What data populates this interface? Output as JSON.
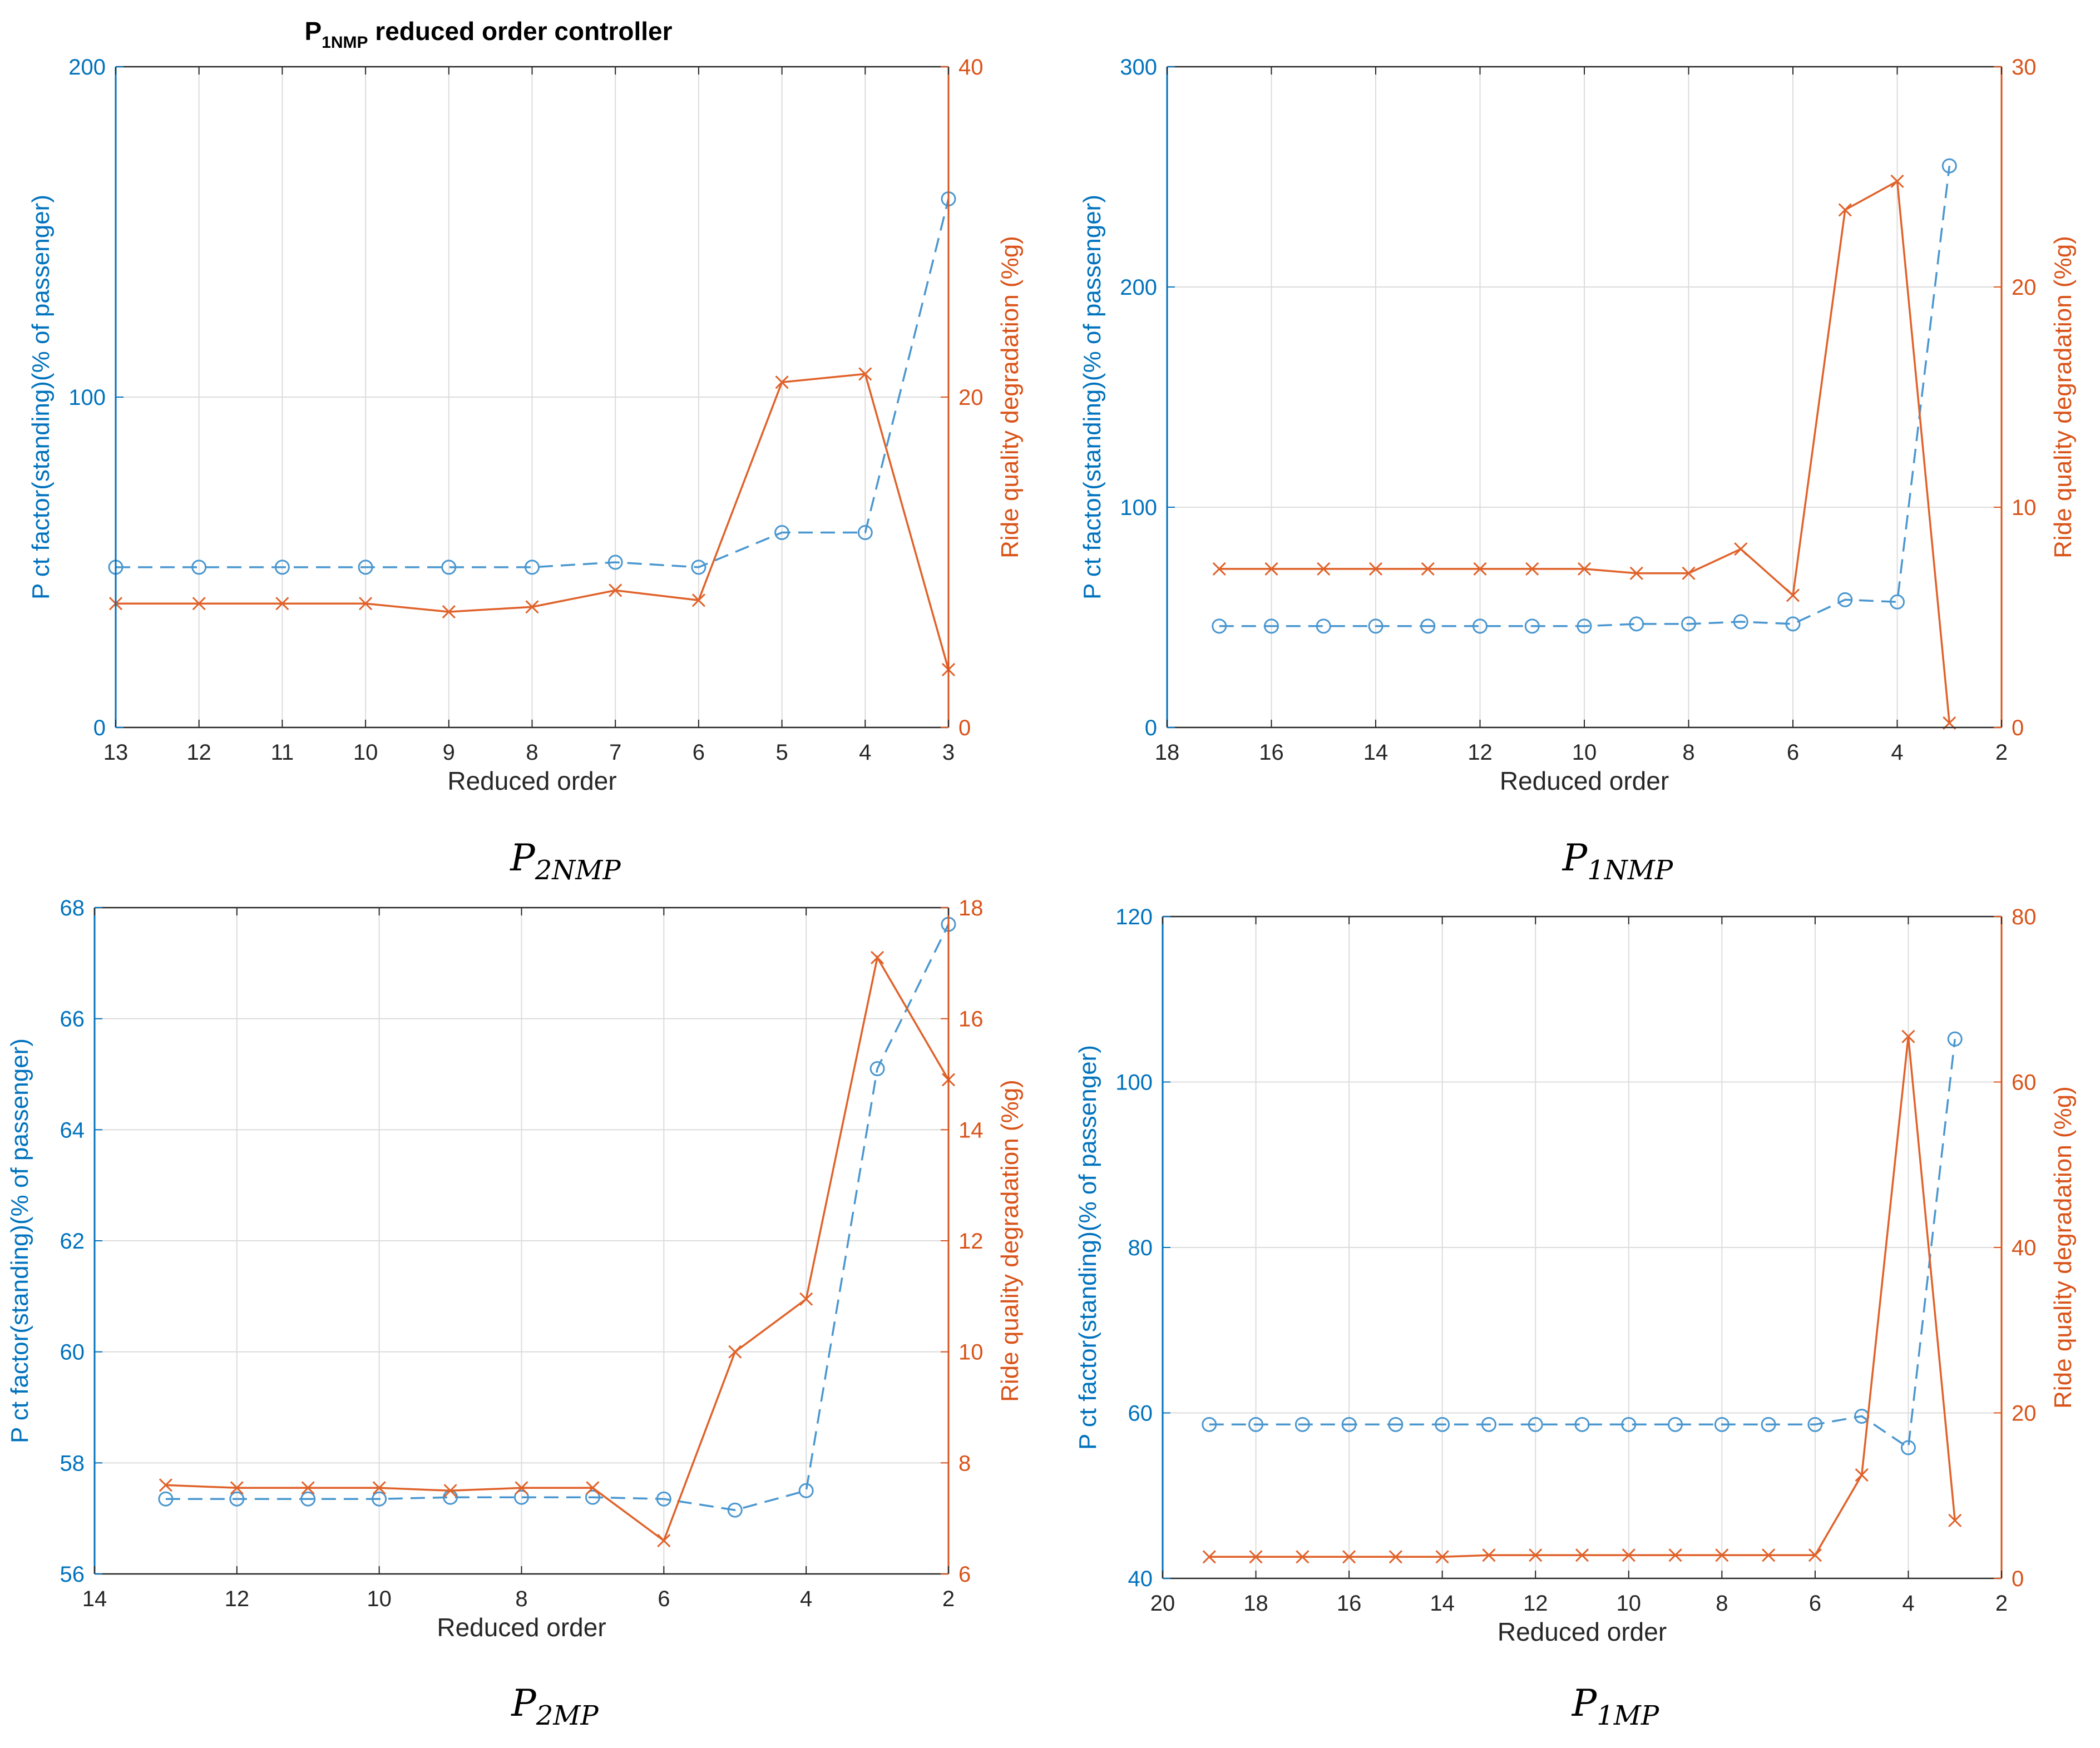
{
  "colors": {
    "left_axis": "#0072BD",
    "left_series": "#4A97D0",
    "right_axis": "#D95319",
    "right_series": "#E0622A",
    "grid": "#DCDCDC",
    "axis_box": "#262626"
  },
  "chart_data": [
    {
      "id": "p2nmp",
      "type": "line",
      "title_main": "P",
      "title_sub": "1NMP",
      "title_rest": " reduced order controller",
      "caption_main": "P",
      "caption_sub": "2NMP",
      "xlabel": "Reduced order",
      "ylabel_left": "P ct factor(standing)(% of passenger)",
      "ylabel_right": "Ride quality degradation (%g)",
      "x_reversed": true,
      "x_categorical": true,
      "xlim": [
        13,
        3
      ],
      "xticks": [
        13,
        12,
        11,
        10,
        9,
        8,
        7,
        6,
        5,
        4,
        3
      ],
      "xtick_labels": [
        "13",
        "12",
        "11",
        "10",
        "9",
        "8",
        "7",
        "6",
        "5",
        "4",
        "3"
      ],
      "ylim_left": [
        0,
        200
      ],
      "yticks_left": [
        0,
        100,
        200
      ],
      "ytick_labels_left": [
        "0",
        "100",
        "200"
      ],
      "ylim_right": [
        0,
        40
      ],
      "yticks_right": [
        0,
        20,
        40
      ],
      "ytick_labels_right": [
        "0",
        "20",
        "40"
      ],
      "series": [
        {
          "name": "Pct factor (standing)",
          "axis": "left",
          "style": "dashed-circle",
          "x": [
            13,
            12,
            11,
            10,
            9,
            8,
            7,
            6,
            5,
            4,
            3
          ],
          "y": [
            48.5,
            48.5,
            48.5,
            48.5,
            48.5,
            48.5,
            50,
            48.5,
            59,
            59,
            160
          ]
        },
        {
          "name": "Ride quality degradation",
          "axis": "right",
          "style": "solid-x",
          "x": [
            13,
            12,
            11,
            10,
            9,
            8,
            7,
            6,
            5,
            4,
            3
          ],
          "y": [
            7.5,
            7.5,
            7.5,
            7.5,
            7.0,
            7.3,
            8.3,
            7.7,
            20.9,
            21.4,
            3.5
          ]
        }
      ]
    },
    {
      "id": "p1nmp",
      "type": "line",
      "caption_main": "P",
      "caption_sub": "1NMP",
      "xlabel": "Reduced order",
      "ylabel_left": "P ct factor(standing)(% of passenger)",
      "ylabel_right": "Ride quality degradation (%g)",
      "x_reversed": true,
      "x_categorical": false,
      "xlim": [
        18,
        2
      ],
      "xticks": [
        18,
        16,
        14,
        12,
        10,
        8,
        6,
        4,
        2
      ],
      "xtick_labels": [
        "18",
        "16",
        "14",
        "12",
        "10",
        "8",
        "6",
        "4",
        "2"
      ],
      "ylim_left": [
        0,
        300
      ],
      "yticks_left": [
        0,
        100,
        200,
        300
      ],
      "ytick_labels_left": [
        "0",
        "100",
        "200",
        "300"
      ],
      "ylim_right": [
        0,
        30
      ],
      "yticks_right": [
        0,
        10,
        20,
        30
      ],
      "ytick_labels_right": [
        "0",
        "10",
        "20",
        "30"
      ],
      "series": [
        {
          "name": "Pct factor (standing)",
          "axis": "left",
          "style": "dashed-circle",
          "x": [
            17,
            16,
            15,
            14,
            13,
            12,
            11,
            10,
            9,
            8,
            7,
            6,
            5,
            4,
            3
          ],
          "y": [
            46,
            46,
            46,
            46,
            46,
            46,
            46,
            46,
            47,
            47,
            48,
            47,
            58,
            57,
            255
          ]
        },
        {
          "name": "Ride quality degradation",
          "axis": "right",
          "style": "solid-x",
          "x": [
            17,
            16,
            15,
            14,
            13,
            12,
            11,
            10,
            9,
            8,
            7,
            6,
            5,
            4,
            3
          ],
          "y": [
            7.2,
            7.2,
            7.2,
            7.2,
            7.2,
            7.2,
            7.2,
            7.2,
            7.0,
            7.0,
            8.1,
            6.0,
            23.5,
            24.8,
            0.2
          ]
        }
      ]
    },
    {
      "id": "p2mp",
      "type": "line",
      "caption_main": "P",
      "caption_sub": "2MP",
      "xlabel": "Reduced order",
      "ylabel_left": "P ct factor(standing)(% of passenger)",
      "ylabel_right": "Ride quality degradation (%g)",
      "x_reversed": true,
      "x_categorical": false,
      "xlim": [
        14,
        2
      ],
      "xticks": [
        14,
        12,
        10,
        8,
        6,
        4,
        2
      ],
      "xtick_labels": [
        "14",
        "12",
        "10",
        "8",
        "6",
        "4",
        "2"
      ],
      "ylim_left": [
        56,
        68
      ],
      "yticks_left": [
        56,
        58,
        60,
        62,
        64,
        66,
        68
      ],
      "ytick_labels_left": [
        "56",
        "58",
        "60",
        "62",
        "64",
        "66",
        "68"
      ],
      "ylim_right": [
        6,
        18
      ],
      "yticks_right": [
        6,
        8,
        10,
        12,
        14,
        16,
        18
      ],
      "ytick_labels_right": [
        "6",
        "8",
        "10",
        "12",
        "14",
        "16",
        "18"
      ],
      "series": [
        {
          "name": "Pct factor (standing)",
          "axis": "left",
          "style": "dashed-circle",
          "x": [
            13,
            12,
            11,
            10,
            9,
            8,
            7,
            6,
            5,
            4,
            3,
            2
          ],
          "y": [
            57.35,
            57.35,
            57.35,
            57.35,
            57.38,
            57.38,
            57.38,
            57.35,
            57.15,
            57.5,
            65.1,
            67.7
          ]
        },
        {
          "name": "Ride quality degradation",
          "axis": "right",
          "style": "solid-x",
          "x": [
            13,
            12,
            11,
            10,
            9,
            8,
            7,
            6,
            5,
            4,
            3,
            2
          ],
          "y": [
            7.6,
            7.55,
            7.55,
            7.55,
            7.5,
            7.55,
            7.55,
            6.6,
            10.0,
            10.95,
            17.1,
            14.9
          ]
        }
      ]
    },
    {
      "id": "p1mp",
      "type": "line",
      "caption_main": "P",
      "caption_sub": "1MP",
      "xlabel": "Reduced order",
      "ylabel_left": "P ct factor(standing)(% of passenger)",
      "ylabel_right": "Ride quality degradation (%g)",
      "x_reversed": true,
      "x_categorical": false,
      "xlim": [
        20,
        2
      ],
      "xticks": [
        20,
        18,
        16,
        14,
        12,
        10,
        8,
        6,
        4,
        2
      ],
      "xtick_labels": [
        "20",
        "18",
        "16",
        "14",
        "12",
        "10",
        "8",
        "6",
        "4",
        "2"
      ],
      "ylim_left": [
        40,
        120
      ],
      "yticks_left": [
        40,
        60,
        80,
        100,
        120
      ],
      "ytick_labels_left": [
        "40",
        "60",
        "80",
        "100",
        "120"
      ],
      "ylim_right": [
        0,
        80
      ],
      "yticks_right": [
        0,
        20,
        40,
        60,
        80
      ],
      "ytick_labels_right": [
        "0",
        "20",
        "40",
        "60",
        "80"
      ],
      "series": [
        {
          "name": "Pct factor (standing)",
          "axis": "left",
          "style": "dashed-circle",
          "x": [
            19,
            18,
            17,
            16,
            15,
            14,
            13,
            12,
            11,
            10,
            9,
            8,
            7,
            6,
            5,
            4,
            3
          ],
          "y": [
            58.6,
            58.6,
            58.6,
            58.6,
            58.6,
            58.6,
            58.6,
            58.6,
            58.6,
            58.6,
            58.6,
            58.6,
            58.6,
            58.6,
            59.6,
            55.8,
            105.2
          ]
        },
        {
          "name": "Ride quality degradation",
          "axis": "right",
          "style": "solid-x",
          "x": [
            19,
            18,
            17,
            16,
            15,
            14,
            13,
            12,
            11,
            10,
            9,
            8,
            7,
            6,
            5,
            4,
            3
          ],
          "y": [
            2.6,
            2.6,
            2.6,
            2.6,
            2.6,
            2.6,
            2.8,
            2.8,
            2.8,
            2.8,
            2.8,
            2.8,
            2.8,
            2.8,
            12.5,
            65.5,
            7.0
          ]
        }
      ]
    }
  ]
}
